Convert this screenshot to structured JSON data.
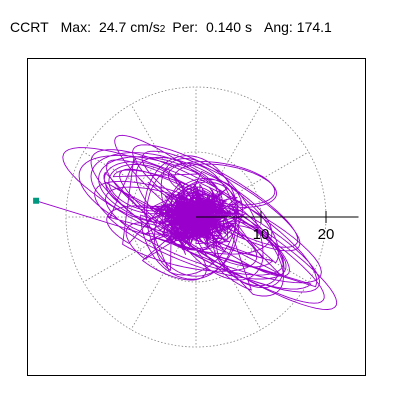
{
  "header": {
    "station": "CCRT",
    "max_label": "Max:",
    "max_value": "24.7",
    "max_unit": "cm/s",
    "max_unit_exp": "2",
    "period_label": "Per:",
    "period_value": "0.140 s",
    "angle_label": "Ang:",
    "angle_value": "174.1"
  },
  "chart_data": {
    "type": "scatter",
    "title": "",
    "xlabel": "",
    "ylabel": "",
    "xlim": [
      -25,
      25
    ],
    "ylim": [
      -25,
      25
    ],
    "grid": "polar dotted",
    "rings": [
      10,
      20
    ],
    "radial_lines_deg": [
      0,
      30,
      60,
      90,
      120,
      150,
      180,
      210,
      240,
      270,
      300,
      330
    ],
    "tick_labels": [
      "10",
      "20"
    ],
    "marker_point": [
      -24.6,
      2.5
    ],
    "seed_loops": [
      [
        0,
        0,
        20,
        5.5,
        150
      ],
      [
        -2,
        1,
        22,
        5,
        155
      ],
      [
        2,
        -1.5,
        18,
        4.5,
        152
      ],
      [
        -4,
        2,
        16,
        6,
        160
      ],
      [
        4,
        -3,
        20,
        4,
        148
      ],
      [
        1,
        1,
        13,
        5.5,
        145
      ],
      [
        -1,
        -2,
        15,
        4.5,
        158
      ],
      [
        3,
        3,
        14,
        3.5,
        150
      ],
      [
        -3,
        -3,
        12,
        4,
        165
      ],
      [
        0,
        2.5,
        17,
        3.5,
        142
      ],
      [
        6,
        -4.5,
        9,
        4.5,
        135
      ],
      [
        -6,
        4,
        10,
        5,
        165
      ],
      [
        2,
        0,
        11,
        6,
        125
      ],
      [
        -1,
        0,
        9,
        7,
        100
      ],
      [
        0,
        -1,
        8,
        6,
        60
      ],
      [
        1,
        0.5,
        6,
        5,
        30
      ],
      [
        0,
        0,
        5,
        4,
        90
      ],
      [
        0,
        0,
        3.5,
        3,
        0
      ],
      [
        -8,
        4.5,
        6,
        3.5,
        165
      ],
      [
        8,
        -6,
        6,
        4,
        140
      ],
      [
        4,
        5,
        8,
        3,
        170
      ],
      [
        -5,
        -5,
        7,
        3,
        150
      ]
    ],
    "core_count": 600,
    "line_color": "#9900cc",
    "marker_color": "#009980"
  }
}
